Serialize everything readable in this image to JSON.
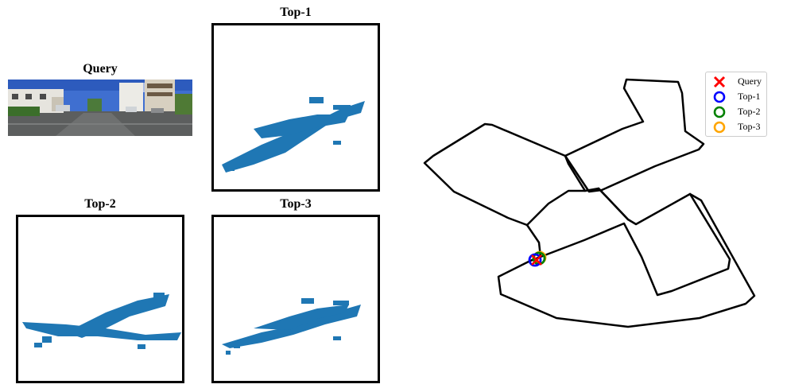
{
  "panels": {
    "query": {
      "title": "Query",
      "icon": "street-scene-photo"
    },
    "top1": {
      "title": "Top-1"
    },
    "top2": {
      "title": "Top-2"
    },
    "top3": {
      "title": "Top-3"
    }
  },
  "point_cloud_color": "#1f77b4",
  "map": {
    "route_color": "#000000",
    "legend": [
      {
        "label": "Query",
        "marker": "x",
        "color": "#ff0000"
      },
      {
        "label": "Top-1",
        "marker": "o",
        "color": "#0000ff"
      },
      {
        "label": "Top-2",
        "marker": "o",
        "color": "#008000"
      },
      {
        "label": "Top-3",
        "marker": "o",
        "color": "#ffa500"
      }
    ]
  }
}
